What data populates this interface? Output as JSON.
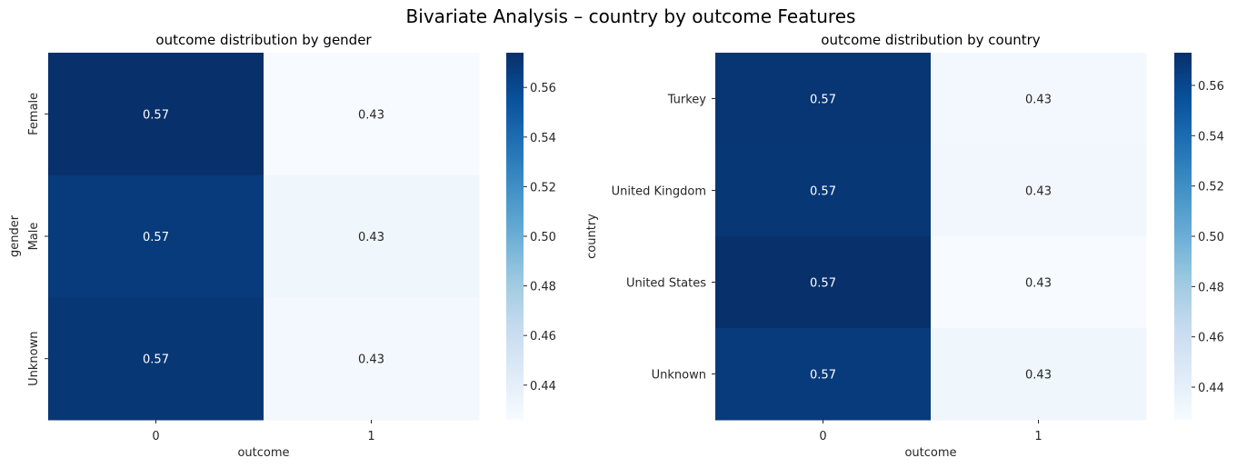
{
  "figure": {
    "suptitle": "Bivariate Analysis – country by outcome Features"
  },
  "colorscale": {
    "name": "Blues",
    "stops": [
      "#f7fbff",
      "#deebf7",
      "#c6dbef",
      "#9ecae1",
      "#6baed6",
      "#4292c6",
      "#2171b5",
      "#08519c",
      "#08306b"
    ]
  },
  "chart_data": [
    {
      "type": "heatmap",
      "title": "outcome distribution by gender",
      "xlabel": "outcome",
      "ylabel": "gender",
      "x_categories": [
        "0",
        "1"
      ],
      "y_categories": [
        "Female",
        "Male",
        "Unknown"
      ],
      "values": [
        [
          0.574,
          0.426
        ],
        [
          0.568,
          0.432
        ],
        [
          0.57,
          0.43
        ]
      ],
      "annotations": [
        [
          "0.57",
          "0.43"
        ],
        [
          "0.57",
          "0.43"
        ],
        [
          "0.57",
          "0.43"
        ]
      ],
      "colorbar": {
        "vmin": 0.426,
        "vmax": 0.574,
        "ticks": [
          "0.44",
          "0.46",
          "0.48",
          "0.50",
          "0.52",
          "0.54",
          "0.56"
        ]
      }
    },
    {
      "type": "heatmap",
      "title": "outcome distribution by country",
      "xlabel": "outcome",
      "ylabel": "country",
      "x_categories": [
        "0",
        "1"
      ],
      "y_categories": [
        "Turkey",
        "United Kingdom",
        "United States",
        "Unknown"
      ],
      "values": [
        [
          0.57,
          0.43
        ],
        [
          0.569,
          0.431
        ],
        [
          0.573,
          0.427
        ],
        [
          0.567,
          0.433
        ]
      ],
      "annotations": [
        [
          "0.57",
          "0.43"
        ],
        [
          "0.57",
          "0.43"
        ],
        [
          "0.57",
          "0.43"
        ],
        [
          "0.57",
          "0.43"
        ]
      ],
      "colorbar": {
        "vmin": 0.427,
        "vmax": 0.573,
        "ticks": [
          "0.44",
          "0.46",
          "0.48",
          "0.50",
          "0.52",
          "0.54",
          "0.56"
        ]
      }
    }
  ]
}
